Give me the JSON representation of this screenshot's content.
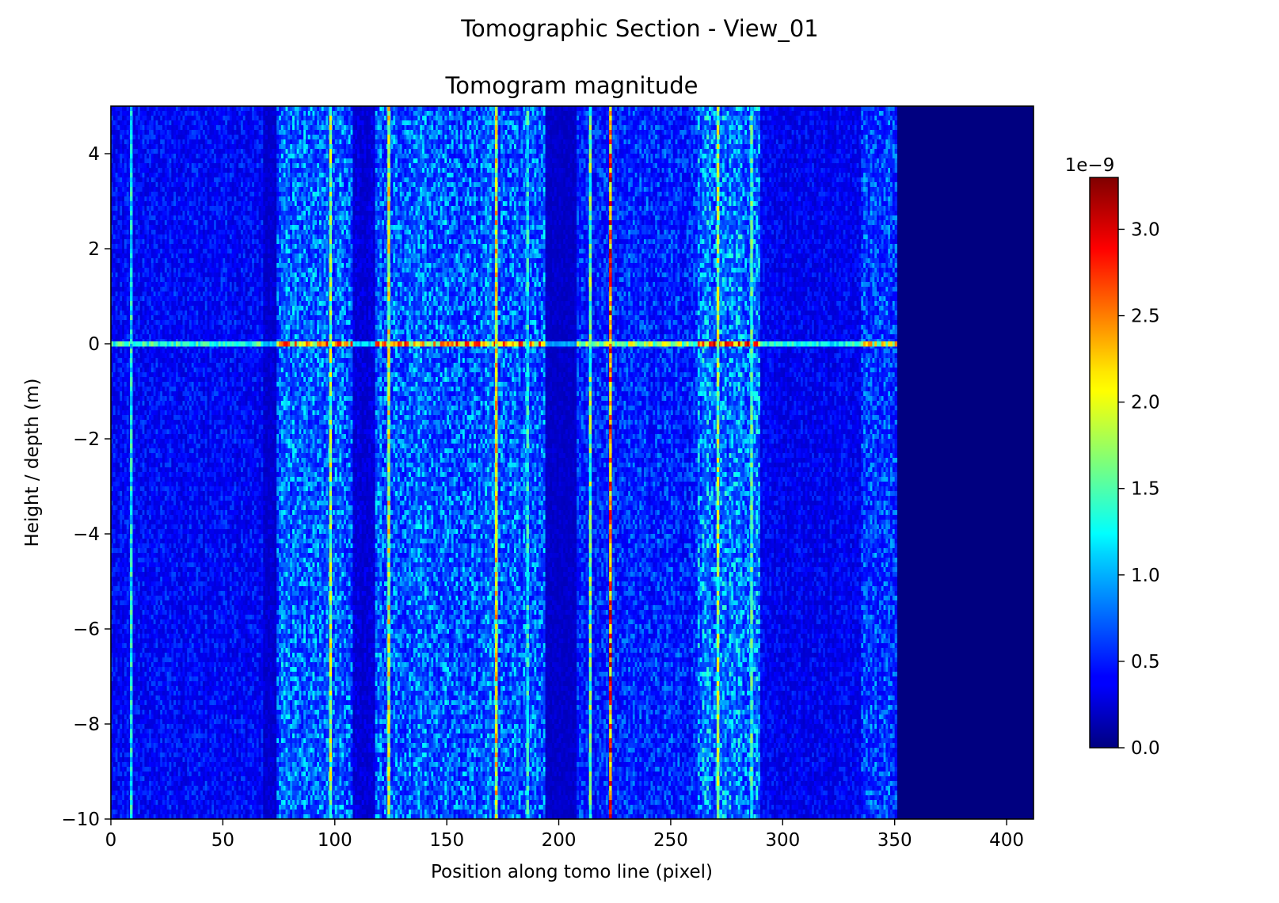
{
  "figure": {
    "suptitle": "Tomographic Section - View_01"
  },
  "chart_data": {
    "type": "heatmap",
    "title": "Tomogram magnitude",
    "xlabel": "Position along tomo line (pixel)",
    "ylabel": "Height / depth (m)",
    "xlim": [
      0,
      412
    ],
    "ylim": [
      -10,
      5
    ],
    "x_ticks": [
      0,
      50,
      100,
      150,
      200,
      250,
      300,
      350,
      400
    ],
    "y_ticks": [
      -10,
      -8,
      -6,
      -4,
      -2,
      0,
      2,
      4
    ],
    "colormap": "jet",
    "colorbar": {
      "range": [
        0,
        3.3
      ],
      "ticks": [
        "0.0",
        "0.5",
        "1.0",
        "1.5",
        "2.0",
        "2.5",
        "3.0"
      ],
      "tick_values": [
        0,
        0.5,
        1.0,
        1.5,
        2.0,
        2.5,
        3.0
      ],
      "offset_label": "1e−9"
    },
    "grid": false,
    "bright_columns": [
      {
        "x": 9,
        "value": 1.6
      },
      {
        "x": 98,
        "value": 2.2
      },
      {
        "x": 124,
        "value": 2.4
      },
      {
        "x": 172,
        "value": 2.6
      },
      {
        "x": 186,
        "value": 1.6
      },
      {
        "x": 214,
        "value": 2.0
      },
      {
        "x": 223,
        "value": 3.2
      },
      {
        "x": 271,
        "value": 2.2
      },
      {
        "x": 286,
        "value": 1.8
      }
    ],
    "active_bands": [
      {
        "x_start": 0,
        "x_end": 68,
        "level": 0.35
      },
      {
        "x_start": 68,
        "x_end": 74,
        "level": 0.15
      },
      {
        "x_start": 74,
        "x_end": 108,
        "level": 0.75
      },
      {
        "x_start": 108,
        "x_end": 118,
        "level": 0.2
      },
      {
        "x_start": 118,
        "x_end": 194,
        "level": 0.75
      },
      {
        "x_start": 194,
        "x_end": 208,
        "level": 0.12
      },
      {
        "x_start": 208,
        "x_end": 262,
        "level": 0.5
      },
      {
        "x_start": 262,
        "x_end": 290,
        "level": 0.85
      },
      {
        "x_start": 290,
        "x_end": 335,
        "level": 0.3
      },
      {
        "x_start": 335,
        "x_end": 351,
        "level": 0.6
      },
      {
        "x_start": 351,
        "x_end": 412,
        "level": 0.0
      }
    ],
    "bright_row_y": 0
  }
}
